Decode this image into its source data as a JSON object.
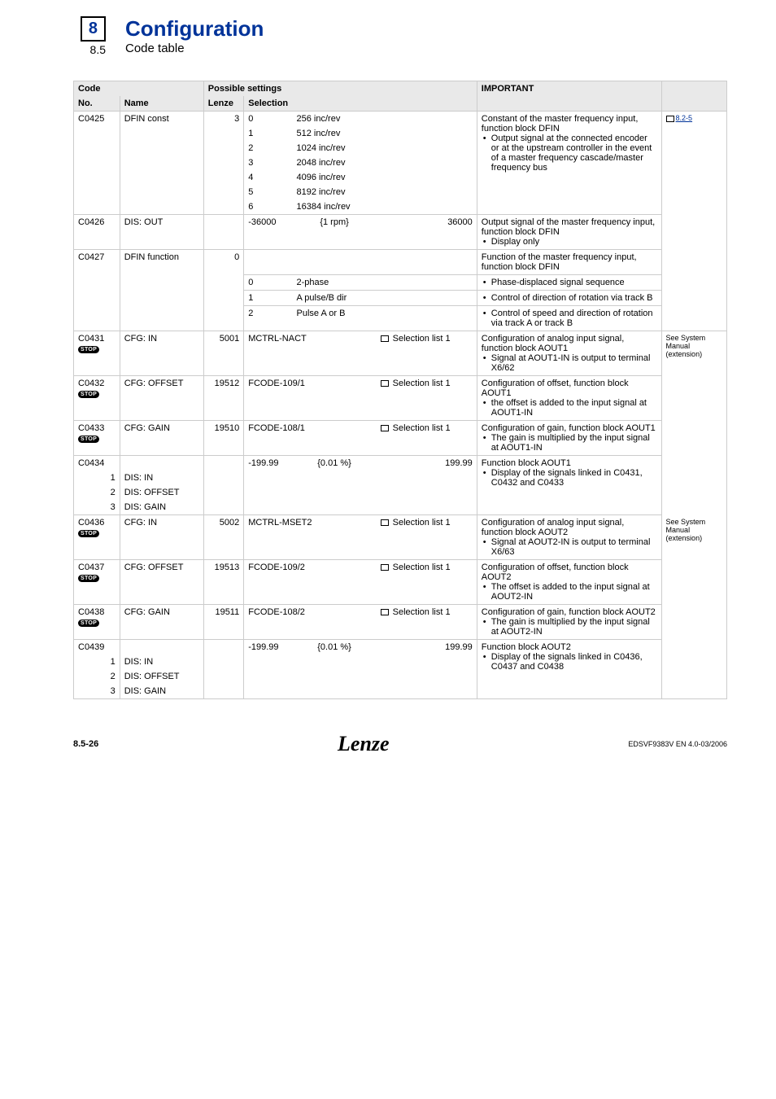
{
  "header": {
    "chapter": "8",
    "section": "8.5",
    "title": "Configuration",
    "subtitle": "Code table"
  },
  "columns": {
    "code": "Code",
    "possible": "Possible settings",
    "important": "IMPORTANT",
    "no": "No.",
    "name": "Name",
    "lenze": "Lenze",
    "selection": "Selection"
  },
  "rows": {
    "c0425": {
      "no": "C0425",
      "name": "DFIN const",
      "lenze": "3",
      "opts": [
        {
          "k": "0",
          "v": "256 inc/rev"
        },
        {
          "k": "1",
          "v": "512 inc/rev"
        },
        {
          "k": "2",
          "v": "1024 inc/rev"
        },
        {
          "k": "3",
          "v": "2048 inc/rev"
        },
        {
          "k": "4",
          "v": "4096 inc/rev"
        },
        {
          "k": "5",
          "v": "8192 inc/rev"
        },
        {
          "k": "6",
          "v": "16384 inc/rev"
        }
      ],
      "important": "Constant of the master frequency input, function block DFIN",
      "important_li": "Output signal at the connected encoder or at the upstream controller in the event of a master frequency cascade/master frequency bus",
      "ref": "8.2-5"
    },
    "c0426": {
      "no": "C0426",
      "name": "DIS: OUT",
      "min": "-36000",
      "unit": "{1 rpm}",
      "max": "36000",
      "important": "Output signal of the master frequency input, function block DFIN",
      "important_li": "Display only"
    },
    "c0427": {
      "no": "C0427",
      "name": "DFIN function",
      "lenze": "0",
      "important": "Function of the master frequency input, function block DFIN",
      "opts": [
        {
          "k": "0",
          "v": "2-phase",
          "imp": "Phase-displaced signal sequence"
        },
        {
          "k": "1",
          "v": "A pulse/B dir",
          "imp": "Control of direction of rotation via track B"
        },
        {
          "k": "2",
          "v": "Pulse A or B",
          "imp": "Control of speed and direction of rotation via track A or track B"
        }
      ]
    },
    "c0431": {
      "no": "C0431",
      "name": "CFG: IN",
      "lenze": "5001",
      "sel": "MCTRL-NACT",
      "list": "Selection list 1",
      "important": "Configuration of analog input signal, function block AOUT1",
      "important_li": "Signal at AOUT1-IN is output to terminal X6/62",
      "ref": "See System Manual (extension)"
    },
    "c0432": {
      "no": "C0432",
      "name": "CFG: OFFSET",
      "lenze": "19512",
      "sel": "FCODE-109/1",
      "list": "Selection list 1",
      "important": "Configuration of offset, function block AOUT1",
      "important_li": "the offset is added to the input signal at AOUT1-IN"
    },
    "c0433": {
      "no": "C0433",
      "name": "CFG: GAIN",
      "lenze": "19510",
      "sel": "FCODE-108/1",
      "list": "Selection list 1",
      "important": "Configuration of gain, function block AOUT1",
      "important_li": "The gain is multiplied by the input signal at AOUT1-IN"
    },
    "c0434": {
      "no": "C0434",
      "min": "-199.99",
      "unit": "{0.01 %}",
      "max": "199.99",
      "important": "Function block AOUT1",
      "important_li": "Display of the signals linked in C0431, C0432 and C0433",
      "subs": [
        {
          "k": "1",
          "v": "DIS: IN"
        },
        {
          "k": "2",
          "v": "DIS: OFFSET"
        },
        {
          "k": "3",
          "v": "DIS: GAIN"
        }
      ]
    },
    "c0436": {
      "no": "C0436",
      "name": "CFG: IN",
      "lenze": "5002",
      "sel": "MCTRL-MSET2",
      "list": "Selection list 1",
      "important": "Configuration of analog input signal, function block AOUT2",
      "important_li": "Signal at AOUT2-IN is output to terminal X6/63",
      "ref": "See System Manual (extension)"
    },
    "c0437": {
      "no": "C0437",
      "name": "CFG: OFFSET",
      "lenze": "19513",
      "sel": "FCODE-109/2",
      "list": "Selection list 1",
      "important": "Configuration of offset, function block AOUT2",
      "important_li": "The offset is added to the input signal at AOUT2-IN"
    },
    "c0438": {
      "no": "C0438",
      "name": "CFG: GAIN",
      "lenze": "19511",
      "sel": "FCODE-108/2",
      "list": "Selection list 1",
      "important": "Configuration of gain, function block AOUT2",
      "important_li": "The gain is multiplied by the input signal at AOUT2-IN"
    },
    "c0439": {
      "no": "C0439",
      "min": "-199.99",
      "unit": "{0.01 %}",
      "max": "199.99",
      "important": "Function block AOUT2",
      "important_li": "Display of the signals linked in C0436, C0437 and C0438",
      "subs": [
        {
          "k": "1",
          "v": "DIS: IN"
        },
        {
          "k": "2",
          "v": "DIS: OFFSET"
        },
        {
          "k": "3",
          "v": "DIS: GAIN"
        }
      ]
    }
  },
  "stop_label": "STOP",
  "footer": {
    "left": "8.5-26",
    "center": "Lenze",
    "right": "EDSVF9383V  EN  4.0-03/2006"
  }
}
